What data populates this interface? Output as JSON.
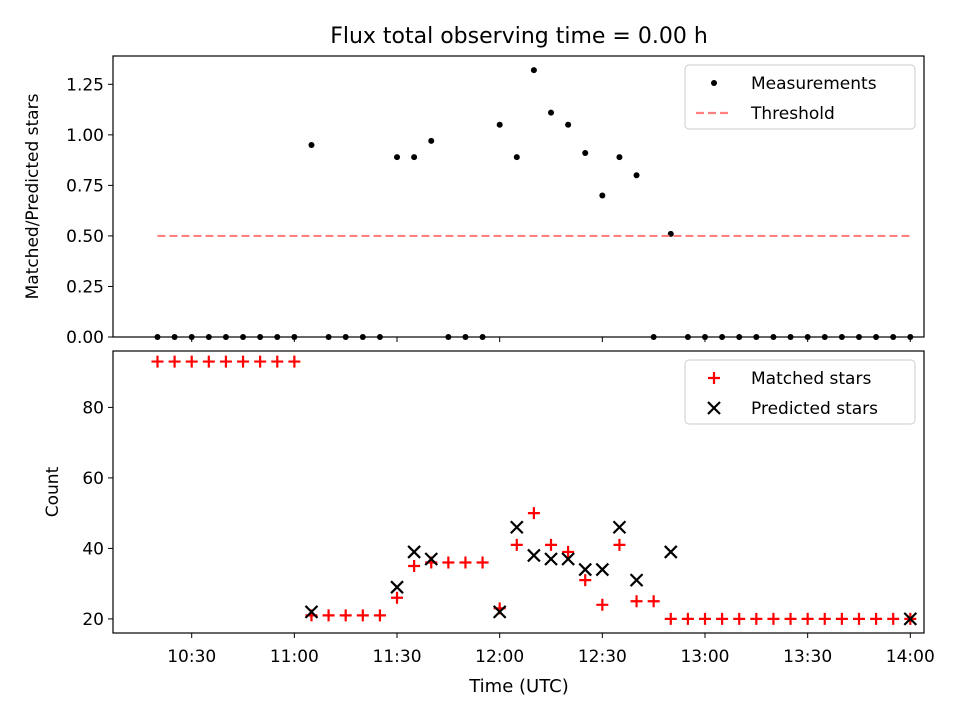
{
  "chart_data": {
    "title": "Flux total observing time = 0.00 h",
    "xlabel": "Time (UTC)",
    "x_tick_labels": [
      "10:30",
      "11:00",
      "11:30",
      "12:00",
      "12:30",
      "13:00",
      "13:30",
      "14:00"
    ],
    "x_unit": "minutes since 10:00 UTC",
    "xlim": [
      7,
      244
    ],
    "panels": [
      {
        "type": "scatter",
        "ylabel": "Matched/Predicted stars",
        "ylim": [
          0,
          1.39
        ],
        "yticks": [
          0,
          0.25,
          0.5,
          0.75,
          1.0,
          1.25
        ],
        "ytick_labels": [
          "0.00",
          "0.25",
          "0.50",
          "0.75",
          "1.00",
          "1.25"
        ],
        "legend_position": "top-right",
        "series": [
          {
            "name": "Measurements",
            "color": "#000000",
            "marker": "dot",
            "x": [
              20,
              25,
              30,
              35,
              40,
              45,
              50,
              55,
              60,
              65,
              70,
              75,
              80,
              85,
              90,
              95,
              100,
              105,
              110,
              115,
              120,
              125,
              130,
              135,
              140,
              145,
              150,
              155,
              160,
              165,
              170,
              175,
              180,
              185,
              190,
              195,
              200,
              205,
              210,
              215,
              220,
              225,
              230,
              235,
              240
            ],
            "y": [
              0,
              0,
              0,
              0,
              0,
              0,
              0,
              0,
              0,
              0.95,
              0,
              0,
              0,
              0,
              0.89,
              0.89,
              0.97,
              0,
              0,
              0,
              1.05,
              0.89,
              1.32,
              1.11,
              1.05,
              0.91,
              0.7,
              0.89,
              0.8,
              0,
              0.51,
              0,
              0,
              0,
              0,
              0,
              0,
              0,
              0,
              0,
              0,
              0,
              0,
              0,
              0
            ]
          },
          {
            "name": "Threshold",
            "color": "#ff8080",
            "style": "dashed",
            "x": [
              20,
              240
            ],
            "y": [
              0.5,
              0.5
            ]
          }
        ]
      },
      {
        "type": "scatter",
        "ylabel": "Count",
        "ylim": [
          16,
          96
        ],
        "yticks": [
          20,
          40,
          60,
          80
        ],
        "ytick_labels": [
          "20",
          "40",
          "60",
          "80"
        ],
        "legend_position": "top-right",
        "series": [
          {
            "name": "Matched stars",
            "color": "#ff0000",
            "marker": "plus",
            "x": [
              20,
              25,
              30,
              35,
              40,
              45,
              50,
              55,
              60,
              65,
              70,
              75,
              80,
              85,
              90,
              95,
              100,
              105,
              110,
              115,
              120,
              125,
              130,
              135,
              140,
              145,
              150,
              155,
              160,
              165,
              170,
              175,
              180,
              185,
              190,
              195,
              200,
              205,
              210,
              215,
              220,
              225,
              230,
              235,
              240
            ],
            "y": [
              93,
              93,
              93,
              93,
              93,
              93,
              93,
              93,
              93,
              21,
              21,
              21,
              21,
              21,
              26,
              35,
              36,
              36,
              36,
              36,
              23,
              41,
              50,
              41,
              39,
              31,
              24,
              41,
              25,
              25,
              20,
              20,
              20,
              20,
              20,
              20,
              20,
              20,
              20,
              20,
              20,
              20,
              20,
              20,
              20
            ]
          },
          {
            "name": "Predicted stars",
            "color": "#000000",
            "marker": "x",
            "x": [
              65,
              90,
              95,
              100,
              120,
              125,
              130,
              135,
              140,
              145,
              150,
              155,
              160,
              170,
              240
            ],
            "y": [
              22,
              29,
              39,
              37,
              22,
              46,
              38,
              37,
              37,
              34,
              34,
              46,
              31,
              39,
              20
            ]
          }
        ]
      }
    ]
  }
}
